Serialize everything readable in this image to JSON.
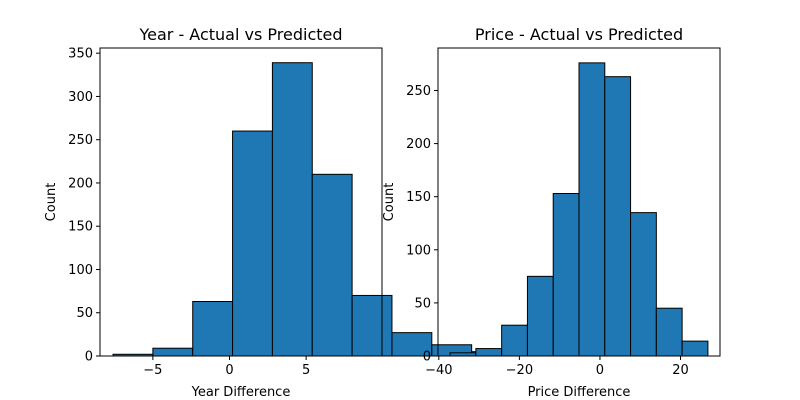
{
  "chart_data": [
    {
      "type": "bar",
      "subtype": "histogram",
      "title": "Year - Actual vs Predicted",
      "xlabel": "Year Difference",
      "ylabel": "Count",
      "bin_edges": [
        -7.6,
        -5.0,
        -2.4,
        0.2,
        2.8,
        5.4,
        8.0,
        10.6,
        13.2,
        15.8,
        18.4
      ],
      "values": [
        2,
        9,
        63,
        260,
        339,
        210,
        70,
        27,
        13,
        5
      ],
      "xlim": [
        -8.45,
        9.95
      ],
      "ylim": [
        0,
        356
      ],
      "xticks": [
        -5,
        0,
        5
      ],
      "xtick_labels": [
        "−5",
        "0",
        "5"
      ],
      "yticks": [
        0,
        50,
        100,
        150,
        200,
        250,
        300,
        350
      ],
      "yticks_labels": [
        "0",
        "50",
        "100",
        "150",
        "200",
        "250",
        "300",
        "350"
      ],
      "grid": false,
      "legend": "none",
      "bar_color": "#1f77b4",
      "edge_color": "#000000"
    },
    {
      "type": "bar",
      "subtype": "histogram",
      "title": "Price - Actual vs Predicted",
      "xlabel": "Price Difference",
      "ylabel": "Count",
      "bin_edges": [
        -37.2,
        -30.8,
        -24.4,
        -18.0,
        -11.6,
        -5.2,
        1.2,
        7.6,
        14.0,
        20.4,
        26.8
      ],
      "values": [
        3,
        7,
        29,
        75,
        153,
        276,
        263,
        135,
        45,
        14
      ],
      "xlim": [
        -40.2,
        29.8
      ],
      "ylim": [
        0,
        290
      ],
      "xticks": [
        -40,
        -20,
        0,
        20
      ],
      "xtick_labels": [
        "−40",
        "−20",
        "0",
        "20"
      ],
      "yticks": [
        0,
        50,
        100,
        150,
        200,
        250
      ],
      "yticks_labels": [
        "0",
        "50",
        "100",
        "150",
        "200",
        "250"
      ],
      "grid": false,
      "legend": "none",
      "bar_color": "#1f77b4",
      "edge_color": "#000000"
    }
  ]
}
